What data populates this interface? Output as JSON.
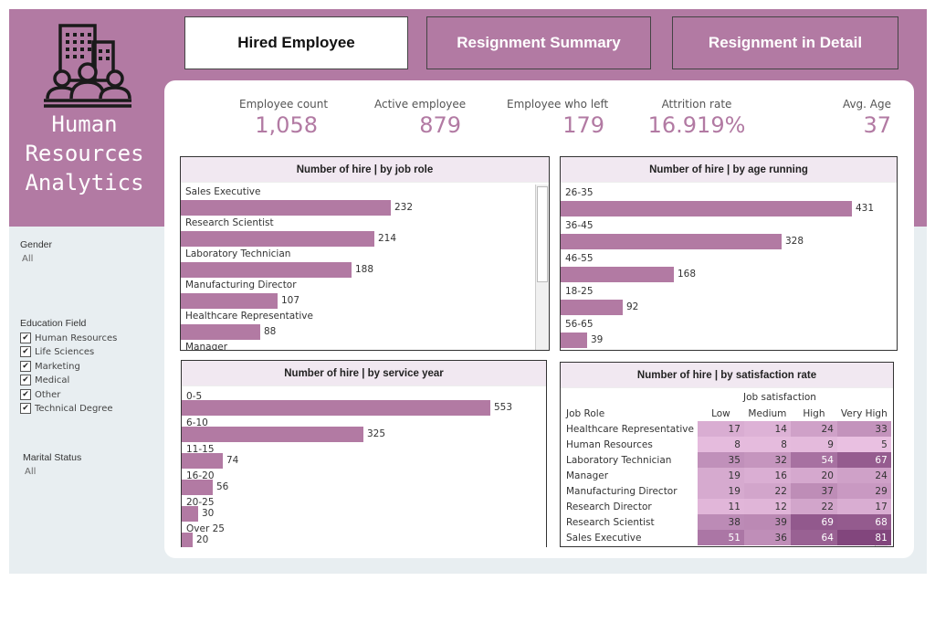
{
  "app": {
    "title_lines": [
      "Human",
      "Resources",
      "Analytics"
    ]
  },
  "tabs": [
    {
      "label": "Hired Employee",
      "active": true
    },
    {
      "label": "Resignment Summary",
      "active": false
    },
    {
      "label": "Resignment in Detail",
      "active": false
    }
  ],
  "kpis": [
    {
      "label": "Employee count",
      "value": "1,058"
    },
    {
      "label": "Active employee",
      "value": "879"
    },
    {
      "label": "Employee who left",
      "value": "179"
    },
    {
      "label": "Attrition rate",
      "value": "16.919%"
    },
    {
      "label": "Avg. Age",
      "value": "37"
    }
  ],
  "filters": {
    "gender": {
      "title": "Gender",
      "value": "All"
    },
    "education": {
      "title": "Education Field",
      "options": [
        "Human Resources",
        "Life Sciences",
        "Marketing",
        "Medical",
        "Other",
        "Technical Degree"
      ]
    },
    "marital": {
      "title": "Marital Status",
      "value": "All"
    }
  },
  "colors": {
    "accent": "#b27aa3",
    "banner": "#b27aa3",
    "header_bg": "#f1e8f1",
    "frame": "#e8eef1"
  },
  "chart_data": [
    {
      "type": "bar",
      "title": "Number of hire | by job role",
      "categories": [
        "Sales Executive",
        "Research Scientist",
        "Laboratory Technician",
        "Manufacturing Director",
        "Healthcare Representative",
        "Manager"
      ],
      "values": [
        232,
        214,
        188,
        107,
        88,
        null
      ],
      "xlim": [
        0,
        260
      ]
    },
    {
      "type": "bar",
      "title": "Number of hire | by age running",
      "categories": [
        "26-35",
        "36-45",
        "46-55",
        "18-25",
        "56-65"
      ],
      "values": [
        431,
        328,
        168,
        92,
        39
      ],
      "xlim": [
        0,
        460
      ]
    },
    {
      "type": "bar",
      "title": "Number of hire | by service year",
      "categories": [
        "0-5",
        "6-10",
        "11-15",
        "16-20",
        "20-25",
        "Over 25"
      ],
      "values": [
        553,
        325,
        74,
        56,
        30,
        20
      ],
      "xlim": [
        0,
        590
      ]
    },
    {
      "type": "heatmap",
      "title": "Number of hire | by satisfaction rate",
      "group_label": "Job satisfaction",
      "row_header": "Job Role",
      "columns": [
        "Low",
        "Medium",
        "High",
        "Very High"
      ],
      "rows": [
        "Healthcare Representative",
        "Human Resources",
        "Laboratory Technician",
        "Manager",
        "Manufacturing Director",
        "Research Director",
        "Research Scientist",
        "Sales Executive"
      ],
      "values": [
        [
          17,
          14,
          24,
          33
        ],
        [
          8,
          8,
          9,
          5
        ],
        [
          35,
          32,
          54,
          67
        ],
        [
          19,
          16,
          20,
          24
        ],
        [
          19,
          22,
          37,
          29
        ],
        [
          11,
          12,
          22,
          17
        ],
        [
          38,
          39,
          69,
          68
        ],
        [
          51,
          36,
          64,
          81
        ]
      ],
      "vmax": 81
    }
  ]
}
